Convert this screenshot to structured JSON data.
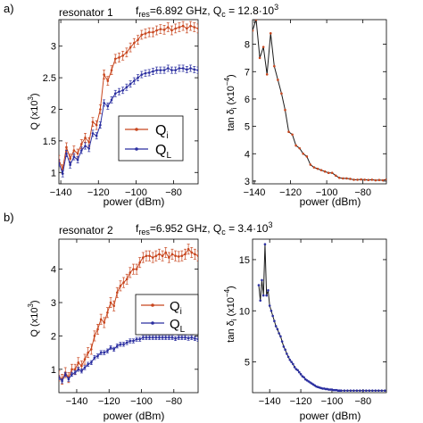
{
  "panels": [
    {
      "letter": "a)",
      "resonator": "resonator 1",
      "freq_label": "f",
      "freq_sub": "res",
      "freq_value": "=6.892 GHz, Q",
      "qc_sub": "c",
      "qc_value": " = 12.8·10",
      "qc_exp": "3"
    },
    {
      "letter": "b)",
      "resonator": "resonator 2",
      "freq_label": "f",
      "freq_sub": "res",
      "freq_value": "=6.952 GHz, Q",
      "qc_sub": "c",
      "qc_value": " = 3.4·10",
      "qc_exp": "3"
    }
  ],
  "legend": {
    "qi_label": "Q",
    "qi_sub": "i",
    "ql_label": "Q",
    "ql_sub": "L"
  },
  "axis_text": {
    "q_ylabel": "Q (x10",
    "q_ylabel_exp": "3",
    "q_ylabel_end": ")",
    "tan_ylabel": "tan δ",
    "tan_ylabel_sub": "i",
    "tan_ylabel_unit": "(x10",
    "tan_ylabel_exp": "−4",
    "tan_ylabel_end": ")",
    "xlabel": "power (dBm)"
  },
  "colors": {
    "qi": "#c8461e",
    "ql": "#2a2ea0",
    "tan_line": "#1a1a1a",
    "tan_marker": "#c8461e",
    "tan_marker_b": "#2a2ea0"
  },
  "chart_data": [
    {
      "id": "a-left",
      "type": "line",
      "xlabel": "power (dBm)",
      "ylabel": "Q (x10^3)",
      "xlim": [
        -141,
        -67
      ],
      "ylim": [
        0.82,
        3.42
      ],
      "xticks": [
        -140,
        -120,
        -100,
        -80
      ],
      "yticks": [
        1,
        1.5,
        2,
        2.5,
        3
      ],
      "series": [
        {
          "name": "Qi",
          "x": [
            -141,
            -139,
            -137,
            -135,
            -133,
            -131,
            -129,
            -127,
            -125,
            -123,
            -121,
            -119,
            -117,
            -115,
            -113,
            -111,
            -109,
            -107,
            -105,
            -103,
            -101,
            -99,
            -97,
            -95,
            -93,
            -91,
            -89,
            -87,
            -85,
            -83,
            -81,
            -79,
            -77,
            -75,
            -73,
            -71,
            -69,
            -67
          ],
          "y": [
            1.2,
            1.05,
            1.4,
            1.22,
            1.35,
            1.3,
            1.45,
            1.55,
            1.48,
            1.8,
            1.75,
            2.0,
            2.55,
            2.45,
            2.62,
            2.8,
            2.82,
            2.85,
            2.9,
            2.98,
            3.05,
            3.1,
            3.18,
            3.2,
            3.22,
            3.22,
            3.25,
            3.27,
            3.26,
            3.3,
            3.25,
            3.28,
            3.3,
            3.32,
            3.28,
            3.32,
            3.3,
            3.28
          ],
          "err": 0.07
        },
        {
          "name": "QL",
          "x": [
            -141,
            -139,
            -137,
            -135,
            -133,
            -131,
            -129,
            -127,
            -125,
            -123,
            -121,
            -119,
            -117,
            -115,
            -113,
            -111,
            -109,
            -107,
            -105,
            -103,
            -101,
            -99,
            -97,
            -95,
            -93,
            -91,
            -89,
            -87,
            -85,
            -83,
            -81,
            -79,
            -77,
            -75,
            -73,
            -71,
            -69,
            -67
          ],
          "y": [
            1.15,
            0.98,
            1.3,
            1.12,
            1.25,
            1.2,
            1.35,
            1.42,
            1.38,
            1.62,
            1.58,
            1.75,
            2.1,
            2.05,
            2.15,
            2.25,
            2.28,
            2.3,
            2.35,
            2.4,
            2.45,
            2.5,
            2.55,
            2.57,
            2.58,
            2.6,
            2.62,
            2.62,
            2.62,
            2.65,
            2.62,
            2.62,
            2.65,
            2.65,
            2.63,
            2.65,
            2.63,
            2.62
          ],
          "err": 0.05
        }
      ]
    },
    {
      "id": "a-right",
      "type": "line",
      "xlabel": "power (dBm)",
      "ylabel": "tan δi (x10^-4)",
      "xlim": [
        -141,
        -67
      ],
      "ylim": [
        2.9,
        8.9
      ],
      "xticks": [
        -140,
        -120,
        -100,
        -80
      ],
      "yticks": [
        3,
        4,
        5,
        6,
        7,
        8
      ],
      "series": [
        {
          "name": "tan",
          "x": [
            -141,
            -139,
            -137,
            -135,
            -133,
            -131,
            -129,
            -127,
            -125,
            -123,
            -121,
            -119,
            -117,
            -115,
            -113,
            -111,
            -109,
            -107,
            -105,
            -103,
            -101,
            -99,
            -97,
            -95,
            -93,
            -91,
            -89,
            -87,
            -85,
            -83,
            -81,
            -79,
            -77,
            -75,
            -73,
            -71,
            -69,
            -67
          ],
          "y": [
            8.5,
            8.9,
            7.5,
            7.9,
            6.9,
            8.4,
            7.2,
            6.7,
            6.2,
            5.6,
            4.8,
            4.7,
            4.3,
            4.2,
            4.0,
            3.9,
            3.6,
            3.5,
            3.45,
            3.4,
            3.35,
            3.3,
            3.3,
            3.2,
            3.12,
            3.1,
            3.1,
            3.08,
            3.05,
            3.05,
            3.06,
            3.05,
            3.04,
            3.05,
            3.03,
            3.04,
            3.03,
            3.06
          ]
        }
      ]
    },
    {
      "id": "b-left",
      "type": "line",
      "xlabel": "power (dBm)",
      "ylabel": "Q (x10^3)",
      "xlim": [
        -151,
        -65
      ],
      "ylim": [
        0.3,
        4.9
      ],
      "xticks": [
        -140,
        -120,
        -100,
        -80
      ],
      "yticks": [
        1,
        2,
        3,
        4
      ],
      "series": [
        {
          "name": "Qi",
          "x": [
            -151,
            -149,
            -147,
            -145,
            -143,
            -141,
            -139,
            -137,
            -135,
            -133,
            -131,
            -129,
            -127,
            -125,
            -123,
            -121,
            -119,
            -117,
            -115,
            -113,
            -111,
            -109,
            -107,
            -105,
            -103,
            -101,
            -99,
            -97,
            -95,
            -93,
            -91,
            -89,
            -87,
            -85,
            -83,
            -81,
            -79,
            -77,
            -75,
            -73,
            -71,
            -69,
            -67,
            -65
          ],
          "y": [
            0.8,
            0.7,
            0.9,
            0.75,
            1.0,
            1.0,
            1.2,
            1.1,
            1.3,
            1.5,
            1.6,
            2.0,
            2.2,
            2.5,
            2.4,
            2.7,
            3.0,
            2.9,
            3.3,
            3.5,
            3.6,
            3.7,
            3.9,
            4.0,
            4.0,
            4.2,
            4.35,
            4.4,
            4.4,
            4.35,
            4.4,
            4.45,
            4.4,
            4.5,
            4.35,
            4.45,
            4.4,
            4.38,
            4.4,
            4.45,
            4.6,
            4.5,
            4.45,
            4.4
          ],
          "err": 0.15
        },
        {
          "name": "QL",
          "x": [
            -151,
            -149,
            -147,
            -145,
            -143,
            -141,
            -139,
            -137,
            -135,
            -133,
            -131,
            -129,
            -127,
            -125,
            -123,
            -121,
            -119,
            -117,
            -115,
            -113,
            -111,
            -109,
            -107,
            -105,
            -103,
            -101,
            -99,
            -97,
            -95,
            -93,
            -91,
            -89,
            -87,
            -85,
            -83,
            -81,
            -79,
            -77,
            -75,
            -73,
            -71,
            -69,
            -67,
            -65
          ],
          "y": [
            0.75,
            0.65,
            0.85,
            0.7,
            0.85,
            0.9,
            1.0,
            0.95,
            1.05,
            1.15,
            1.2,
            1.35,
            1.4,
            1.5,
            1.5,
            1.55,
            1.65,
            1.6,
            1.7,
            1.75,
            1.75,
            1.8,
            1.85,
            1.85,
            1.9,
            1.9,
            1.95,
            1.95,
            1.95,
            1.95,
            1.95,
            1.95,
            1.95,
            1.95,
            1.95,
            1.95,
            1.92,
            1.95,
            1.95,
            1.95,
            1.93,
            1.95,
            1.92,
            1.9
          ],
          "err": 0.06
        }
      ]
    },
    {
      "id": "b-right",
      "type": "line",
      "xlabel": "power (dBm)",
      "ylabel": "tan δi (x10^-4)",
      "xlim": [
        -151,
        -65
      ],
      "ylim": [
        2.0,
        17.0
      ],
      "xticks": [
        -140,
        -120,
        -100,
        -80
      ],
      "yticks": [
        5,
        10,
        15
      ],
      "series": [
        {
          "name": "tan",
          "x": [
            -147,
            -146,
            -145,
            -144,
            -143,
            -142,
            -141,
            -140,
            -139,
            -138,
            -137,
            -136,
            -135,
            -134,
            -133,
            -132,
            -131,
            -130,
            -129,
            -128,
            -127,
            -126,
            -125,
            -124,
            -123,
            -122,
            -121,
            -120,
            -119,
            -118,
            -117,
            -116,
            -115,
            -114,
            -113,
            -112,
            -111,
            -110,
            -109,
            -108,
            -107,
            -106,
            -105,
            -104,
            -103,
            -102,
            -101,
            -100,
            -99,
            -98,
            -97,
            -96,
            -95,
            -94,
            -92,
            -90,
            -88,
            -86,
            -84,
            -82,
            -80,
            -78,
            -76,
            -74,
            -72,
            -70,
            -68,
            -66
          ],
          "y": [
            12.5,
            11.0,
            13.0,
            11.5,
            16.5,
            11.5,
            12.0,
            10.5,
            10.0,
            9.5,
            9.0,
            8.5,
            8.2,
            7.8,
            7.5,
            7.0,
            6.5,
            6.2,
            5.8,
            5.5,
            5.2,
            5.0,
            4.8,
            4.5,
            4.3,
            4.2,
            4.0,
            3.8,
            3.6,
            3.5,
            3.3,
            3.2,
            3.1,
            3.0,
            2.9,
            2.8,
            2.7,
            2.6,
            2.55,
            2.5,
            2.45,
            2.4,
            2.4,
            2.35,
            2.35,
            2.3,
            2.3,
            2.3,
            2.25,
            2.25,
            2.25,
            2.2,
            2.2,
            2.2,
            2.2,
            2.2,
            2.2,
            2.2,
            2.2,
            2.2,
            2.2,
            2.2,
            2.2,
            2.2,
            2.2,
            2.2,
            2.2,
            2.2
          ]
        }
      ]
    }
  ]
}
